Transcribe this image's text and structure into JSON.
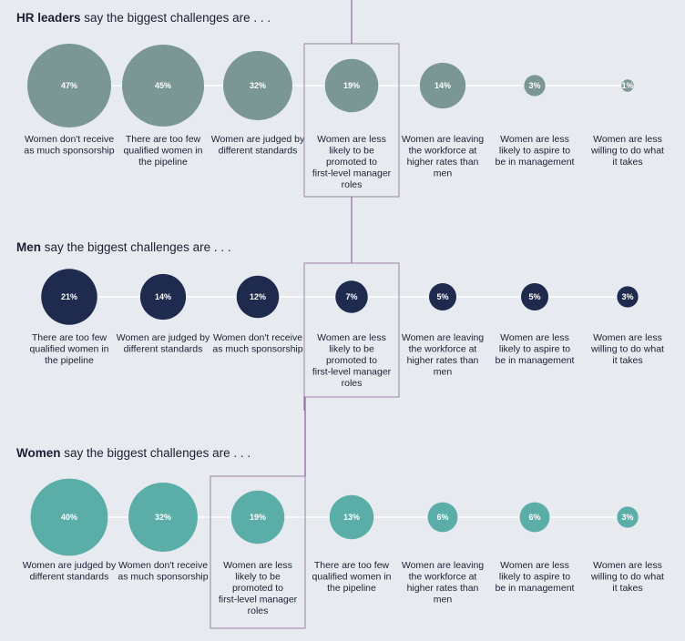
{
  "colors": {
    "hr": "#7a9795",
    "men": "#1f2a4f",
    "women": "#5aaea7",
    "highlight": "#a892b2"
  },
  "chart_data": [
    {
      "type": "bubble",
      "title_bold": "HR leaders",
      "title_rest": " say the biggest challenges are . . .",
      "color": "#7a9795",
      "highlight": "Women are less likely to be promoted to first-level manager roles",
      "items": [
        {
          "label": "Women don't receive as much sponsorship",
          "value": 47,
          "text": "47%"
        },
        {
          "label": "There are too few qualified women in the pipeline",
          "value": 45,
          "text": "45%"
        },
        {
          "label": "Women are judged by different standards",
          "value": 32,
          "text": "32%"
        },
        {
          "label": "Women are less likely to be promoted to first-level manager roles",
          "value": 19,
          "text": "19%"
        },
        {
          "label": "Women are leaving the workforce at higher rates than men",
          "value": 14,
          "text": "14%"
        },
        {
          "label": "Women are less likely to aspire to be in management",
          "value": 3,
          "text": "3%"
        },
        {
          "label": "Women are less willing to do what it takes",
          "value": 1,
          "text": "1%"
        }
      ]
    },
    {
      "type": "bubble",
      "title_bold": "Men",
      "title_rest": " say the biggest challenges are . . .",
      "color": "#1f2a4f",
      "highlight": "Women are less likely to be promoted to first-level manager roles",
      "items": [
        {
          "label": "There are too few qualified women in the pipeline",
          "value": 21,
          "text": "21%"
        },
        {
          "label": "Women are judged by different standards",
          "value": 14,
          "text": "14%"
        },
        {
          "label": "Women don't receive as much sponsorship",
          "value": 12,
          "text": "12%"
        },
        {
          "label": "Women are less likely to be promoted to first-level manager roles",
          "value": 7,
          "text": "7%"
        },
        {
          "label": "Women are leaving the workforce at higher rates than men",
          "value": 5,
          "text": "5%"
        },
        {
          "label": "Women are less likely to aspire to be in management",
          "value": 5,
          "text": "5%"
        },
        {
          "label": "Women are less willing to do what it takes",
          "value": 3,
          "text": "3%"
        }
      ]
    },
    {
      "type": "bubble",
      "title_bold": "Women",
      "title_rest": " say the biggest challenges are . . .",
      "color": "#5aaea7",
      "highlight": "Women are less likely to be promoted to first-level manager roles",
      "items": [
        {
          "label": "Women are judged by different standards",
          "value": 40,
          "text": "40%"
        },
        {
          "label": "Women don't receive as much sponsorship",
          "value": 32,
          "text": "32%"
        },
        {
          "label": "Women are less likely to be promoted to first-level manager roles",
          "value": 19,
          "text": "19%"
        },
        {
          "label": "There are too few qualified women in the pipeline",
          "value": 13,
          "text": "13%"
        },
        {
          "label": "Women are leaving the workforce at higher rates than men",
          "value": 6,
          "text": "6%"
        },
        {
          "label": "Women are less likely to aspire to be in management",
          "value": 6,
          "text": "6%"
        },
        {
          "label": "Women are less willing to do what it takes",
          "value": 3,
          "text": "3%"
        }
      ]
    }
  ]
}
